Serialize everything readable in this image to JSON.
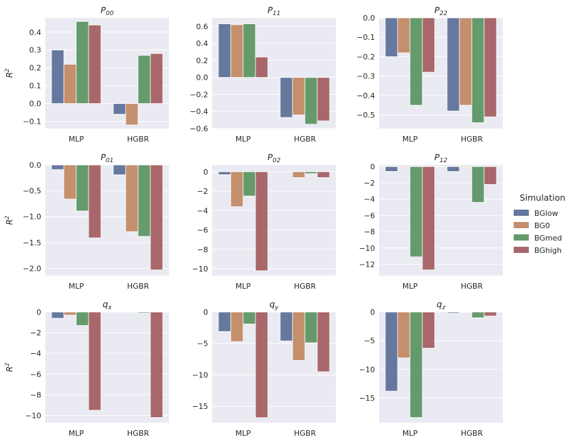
{
  "legend": {
    "title": "Simulation",
    "entries": [
      {
        "name": "BGlow",
        "color": "#66789d"
      },
      {
        "name": "BG0",
        "color": "#c38f6c"
      },
      {
        "name": "BGmed",
        "color": "#659a6c"
      },
      {
        "name": "BGhigh",
        "color": "#a8676a"
      }
    ]
  },
  "chart_data": [
    {
      "type": "bar",
      "title": "P00",
      "title_base": "P",
      "title_sub": "00",
      "ylabel_base": "R",
      "ylabel_sup": "2",
      "categories": [
        "MLP",
        "HGBR"
      ],
      "ylim": [
        -0.14,
        0.48
      ],
      "yticks": [
        -0.1,
        0.0,
        0.1,
        0.2,
        0.3,
        0.4
      ],
      "ytick_labels": [
        "−0.1",
        "0.0",
        "0.1",
        "0.2",
        "0.3",
        "0.4"
      ],
      "grid": true,
      "legend": "right",
      "series": [
        {
          "name": "BGlow",
          "values": [
            0.3,
            -0.06
          ]
        },
        {
          "name": "BG0",
          "values": [
            0.22,
            -0.12
          ]
        },
        {
          "name": "BGmed",
          "values": [
            0.46,
            0.27
          ]
        },
        {
          "name": "BGhigh",
          "values": [
            0.44,
            0.28
          ]
        }
      ]
    },
    {
      "type": "bar",
      "title": "P11",
      "title_base": "P",
      "title_sub": "11",
      "ylabel_base": "",
      "ylabel_sup": "",
      "categories": [
        "MLP",
        "HGBR"
      ],
      "ylim": [
        -0.6,
        0.7
      ],
      "yticks": [
        -0.6,
        -0.4,
        -0.2,
        0.0,
        0.2,
        0.4,
        0.6
      ],
      "ytick_labels": [
        "−0.6",
        "−0.4",
        "−0.2",
        "0.0",
        "0.2",
        "0.4",
        "0.6"
      ],
      "grid": true,
      "legend": "right",
      "series": [
        {
          "name": "BGlow",
          "values": [
            0.63,
            -0.47
          ]
        },
        {
          "name": "BG0",
          "values": [
            0.62,
            -0.44
          ]
        },
        {
          "name": "BGmed",
          "values": [
            0.63,
            -0.55
          ]
        },
        {
          "name": "BGhigh",
          "values": [
            0.24,
            -0.51
          ]
        }
      ]
    },
    {
      "type": "bar",
      "title": "P22",
      "title_base": "P",
      "title_sub": "22",
      "ylabel_base": "",
      "ylabel_sup": "",
      "categories": [
        "MLP",
        "HGBR"
      ],
      "ylim": [
        -0.57,
        0.0
      ],
      "yticks": [
        -0.5,
        -0.4,
        -0.3,
        -0.2,
        -0.1,
        0.0
      ],
      "ytick_labels": [
        "−0.5",
        "−0.4",
        "−0.3",
        "−0.2",
        "−0.1",
        "0.0"
      ],
      "grid": true,
      "legend": "right",
      "series": [
        {
          "name": "BGlow",
          "values": [
            -0.2,
            -0.48
          ]
        },
        {
          "name": "BG0",
          "values": [
            -0.18,
            -0.45
          ]
        },
        {
          "name": "BGmed",
          "values": [
            -0.45,
            -0.54
          ]
        },
        {
          "name": "BGhigh",
          "values": [
            -0.28,
            -0.51
          ]
        }
      ]
    },
    {
      "type": "bar",
      "title": "P01",
      "title_base": "P",
      "title_sub": "01",
      "ylabel_base": "R",
      "ylabel_sup": "2",
      "categories": [
        "MLP",
        "HGBR"
      ],
      "ylim": [
        -2.14,
        0.0
      ],
      "yticks": [
        -2.0,
        -1.5,
        -1.0,
        -0.5,
        0.0
      ],
      "ytick_labels": [
        "−2.0",
        "−1.5",
        "−1.0",
        "−0.5",
        "0.0"
      ],
      "grid": true,
      "legend": "right",
      "series": [
        {
          "name": "BGlow",
          "values": [
            -0.09,
            -0.19
          ]
        },
        {
          "name": "BG0",
          "values": [
            -0.66,
            -1.29
          ]
        },
        {
          "name": "BGmed",
          "values": [
            -0.89,
            -1.38
          ]
        },
        {
          "name": "BGhigh",
          "values": [
            -1.41,
            -2.03
          ]
        }
      ]
    },
    {
      "type": "bar",
      "title": "P02",
      "title_base": "P",
      "title_sub": "02",
      "ylabel_base": "",
      "ylabel_sup": "",
      "categories": [
        "MLP",
        "HGBR"
      ],
      "ylim": [
        -10.7,
        0.7
      ],
      "yticks": [
        -10,
        -8,
        -6,
        -4,
        -2,
        0
      ],
      "ytick_labels": [
        "−10",
        "−8",
        "−6",
        "−4",
        "−2",
        "0"
      ],
      "grid": true,
      "legend": "right",
      "series": [
        {
          "name": "BGlow",
          "values": [
            -0.3,
            0.0
          ]
        },
        {
          "name": "BG0",
          "values": [
            -3.6,
            -0.6
          ]
        },
        {
          "name": "BGmed",
          "values": [
            -2.5,
            -0.2
          ]
        },
        {
          "name": "BGhigh",
          "values": [
            -10.2,
            -0.6
          ]
        }
      ]
    },
    {
      "type": "bar",
      "title": "P12",
      "title_base": "P",
      "title_sub": "12",
      "ylabel_base": "",
      "ylabel_sup": "",
      "categories": [
        "MLP",
        "HGBR"
      ],
      "ylim": [
        -13.4,
        0.2
      ],
      "yticks": [
        -12,
        -10,
        -8,
        -6,
        -4,
        -2,
        0
      ],
      "ytick_labels": [
        "−12",
        "−10",
        "−8",
        "−6",
        "−4",
        "−2",
        "0"
      ],
      "grid": true,
      "legend": "right",
      "series": [
        {
          "name": "BGlow",
          "values": [
            -0.6,
            -0.6
          ]
        },
        {
          "name": "BG0",
          "values": [
            -0.1,
            -0.1
          ]
        },
        {
          "name": "BGmed",
          "values": [
            -11.1,
            -4.4
          ]
        },
        {
          "name": "BGhigh",
          "values": [
            -12.7,
            -2.2
          ]
        }
      ]
    },
    {
      "type": "bar",
      "title": "qx",
      "title_base": "q",
      "title_sub": "x",
      "ylabel_base": "R",
      "ylabel_sup": "2",
      "categories": [
        "MLP",
        "HGBR"
      ],
      "ylim": [
        -10.7,
        0.0
      ],
      "yticks": [
        -10,
        -8,
        -6,
        -4,
        -2,
        0
      ],
      "ytick_labels": [
        "−10",
        "−8",
        "−6",
        "−4",
        "−2",
        "0"
      ],
      "grid": true,
      "legend": "right",
      "series": [
        {
          "name": "BGlow",
          "values": [
            -0.6,
            0.0
          ]
        },
        {
          "name": "BG0",
          "values": [
            -0.3,
            0.0
          ]
        },
        {
          "name": "BGmed",
          "values": [
            -1.3,
            -0.1
          ]
        },
        {
          "name": "BGhigh",
          "values": [
            -9.5,
            -10.2
          ]
        }
      ]
    },
    {
      "type": "bar",
      "title": "qy",
      "title_base": "q",
      "title_sub": "y",
      "ylabel_base": "",
      "ylabel_sup": "",
      "categories": [
        "MLP",
        "HGBR"
      ],
      "ylim": [
        -17.6,
        0.0
      ],
      "yticks": [
        -15,
        -10,
        -5,
        0
      ],
      "ytick_labels": [
        "−15",
        "−10",
        "−5",
        "0"
      ],
      "grid": true,
      "legend": "right",
      "series": [
        {
          "name": "BGlow",
          "values": [
            -3.1,
            -4.6
          ]
        },
        {
          "name": "BG0",
          "values": [
            -4.7,
            -7.7
          ]
        },
        {
          "name": "BGmed",
          "values": [
            -1.9,
            -4.9
          ]
        },
        {
          "name": "BGhigh",
          "values": [
            -16.8,
            -9.5
          ]
        }
      ]
    },
    {
      "type": "bar",
      "title": "qz",
      "title_base": "q",
      "title_sub": "z",
      "ylabel_base": "",
      "ylabel_sup": "",
      "categories": [
        "MLP",
        "HGBR"
      ],
      "ylim": [
        -19.3,
        0.0
      ],
      "yticks": [
        -15,
        -10,
        -5,
        0
      ],
      "ytick_labels": [
        "−15",
        "−10",
        "−5",
        "0"
      ],
      "grid": true,
      "legend": "right",
      "series": [
        {
          "name": "BGlow",
          "values": [
            -13.8,
            -0.2
          ]
        },
        {
          "name": "BG0",
          "values": [
            -8.0,
            -0.1
          ]
        },
        {
          "name": "BGmed",
          "values": [
            -18.4,
            -1.0
          ]
        },
        {
          "name": "BGhigh",
          "values": [
            -6.3,
            -0.7
          ]
        }
      ]
    }
  ]
}
